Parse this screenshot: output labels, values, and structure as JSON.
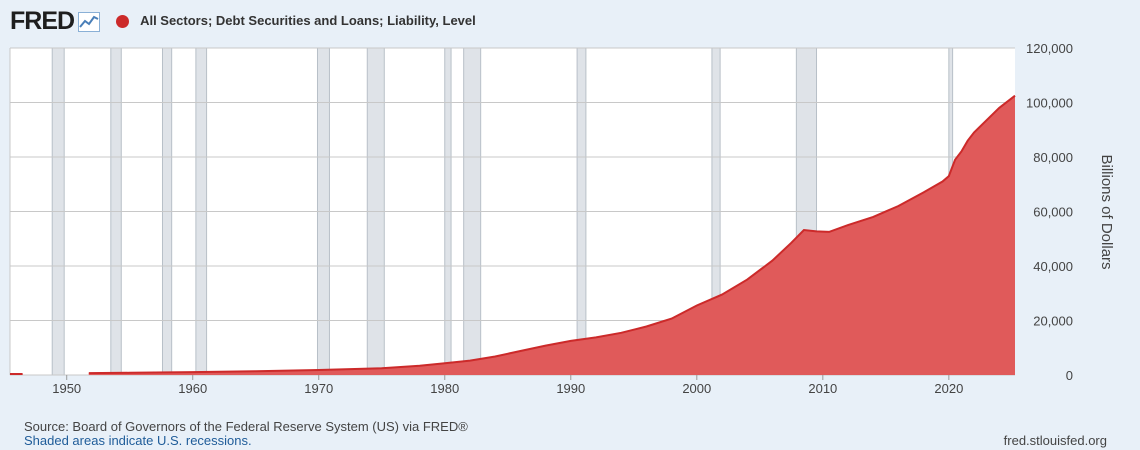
{
  "header": {
    "logo_text": "FRED",
    "logo_icon": "line-chart-icon",
    "series_title": "All Sectors; Debt Securities and Loans; Liability, Level"
  },
  "colors": {
    "series": "#cc2a2a",
    "area_fill": "#e05a5a",
    "recession": "#dfe3e8",
    "background": "#e8f0f8"
  },
  "chart_data": {
    "type": "area",
    "title": "All Sectors; Debt Securities and Loans; Liability, Level",
    "xlabel": "",
    "ylabel": "Billions of Dollars",
    "xlim": [
      1945.5,
      2025.25
    ],
    "ylim": [
      0,
      120000
    ],
    "x_ticks": [
      1950,
      1960,
      1970,
      1980,
      1990,
      2000,
      2010,
      2020
    ],
    "y_ticks": [
      0,
      20000,
      40000,
      60000,
      80000,
      100000,
      120000
    ],
    "y_tick_labels": [
      "0",
      "20,000",
      "40,000",
      "60,000",
      "80,000",
      "100,000",
      "120,000"
    ],
    "grid": true,
    "series": [
      {
        "segments": [
          {
            "x": [
              1945.5,
              1946.5
            ],
            "y": [
              350,
              350
            ]
          },
          {
            "x": [
              1951.75,
              1955,
              1960,
              1965,
              1970,
              1975,
              1978,
              1980,
              1982,
              1984,
              1986,
              1988,
              1990,
              1992,
              1994,
              1996,
              1998,
              2000,
              2002,
              2004,
              2006,
              2007.5,
              2008.5,
              2009.5,
              2010.5,
              2012,
              2014,
              2016,
              2018,
              2019.5,
              2020,
              2020.5,
              2021,
              2021.5,
              2022,
              2023,
              2024,
              2025.25
            ],
            "y": [
              680,
              820,
              1050,
              1400,
              1850,
              2500,
              3400,
              4300,
              5300,
              6800,
              8800,
              10800,
              12500,
              13800,
              15500,
              17800,
              20700,
              25500,
              29500,
              35000,
              42000,
              48500,
              53200,
              52700,
              52500,
              55000,
              58000,
              62000,
              67000,
              71000,
              73000,
              79000,
              82000,
              86000,
              89000,
              93500,
              98000,
              102500
            ]
          }
        ]
      }
    ],
    "recessions": [
      [
        1948.85,
        1949.8
      ],
      [
        1953.5,
        1954.33
      ],
      [
        1957.6,
        1958.33
      ],
      [
        1960.25,
        1961.1
      ],
      [
        1969.9,
        1970.85
      ],
      [
        1973.85,
        1975.2
      ],
      [
        1980.0,
        1980.5
      ],
      [
        1981.5,
        1982.85
      ],
      [
        1990.5,
        1991.2
      ],
      [
        2001.2,
        2001.85
      ],
      [
        2007.9,
        2009.5
      ],
      [
        2020.0,
        2020.3
      ]
    ]
  },
  "footer": {
    "source": "Source: Board of Governors of the Federal Reserve System (US) via FRED®",
    "note": "Shaded areas indicate U.S. recessions.",
    "url": "fred.stlouisfed.org"
  }
}
